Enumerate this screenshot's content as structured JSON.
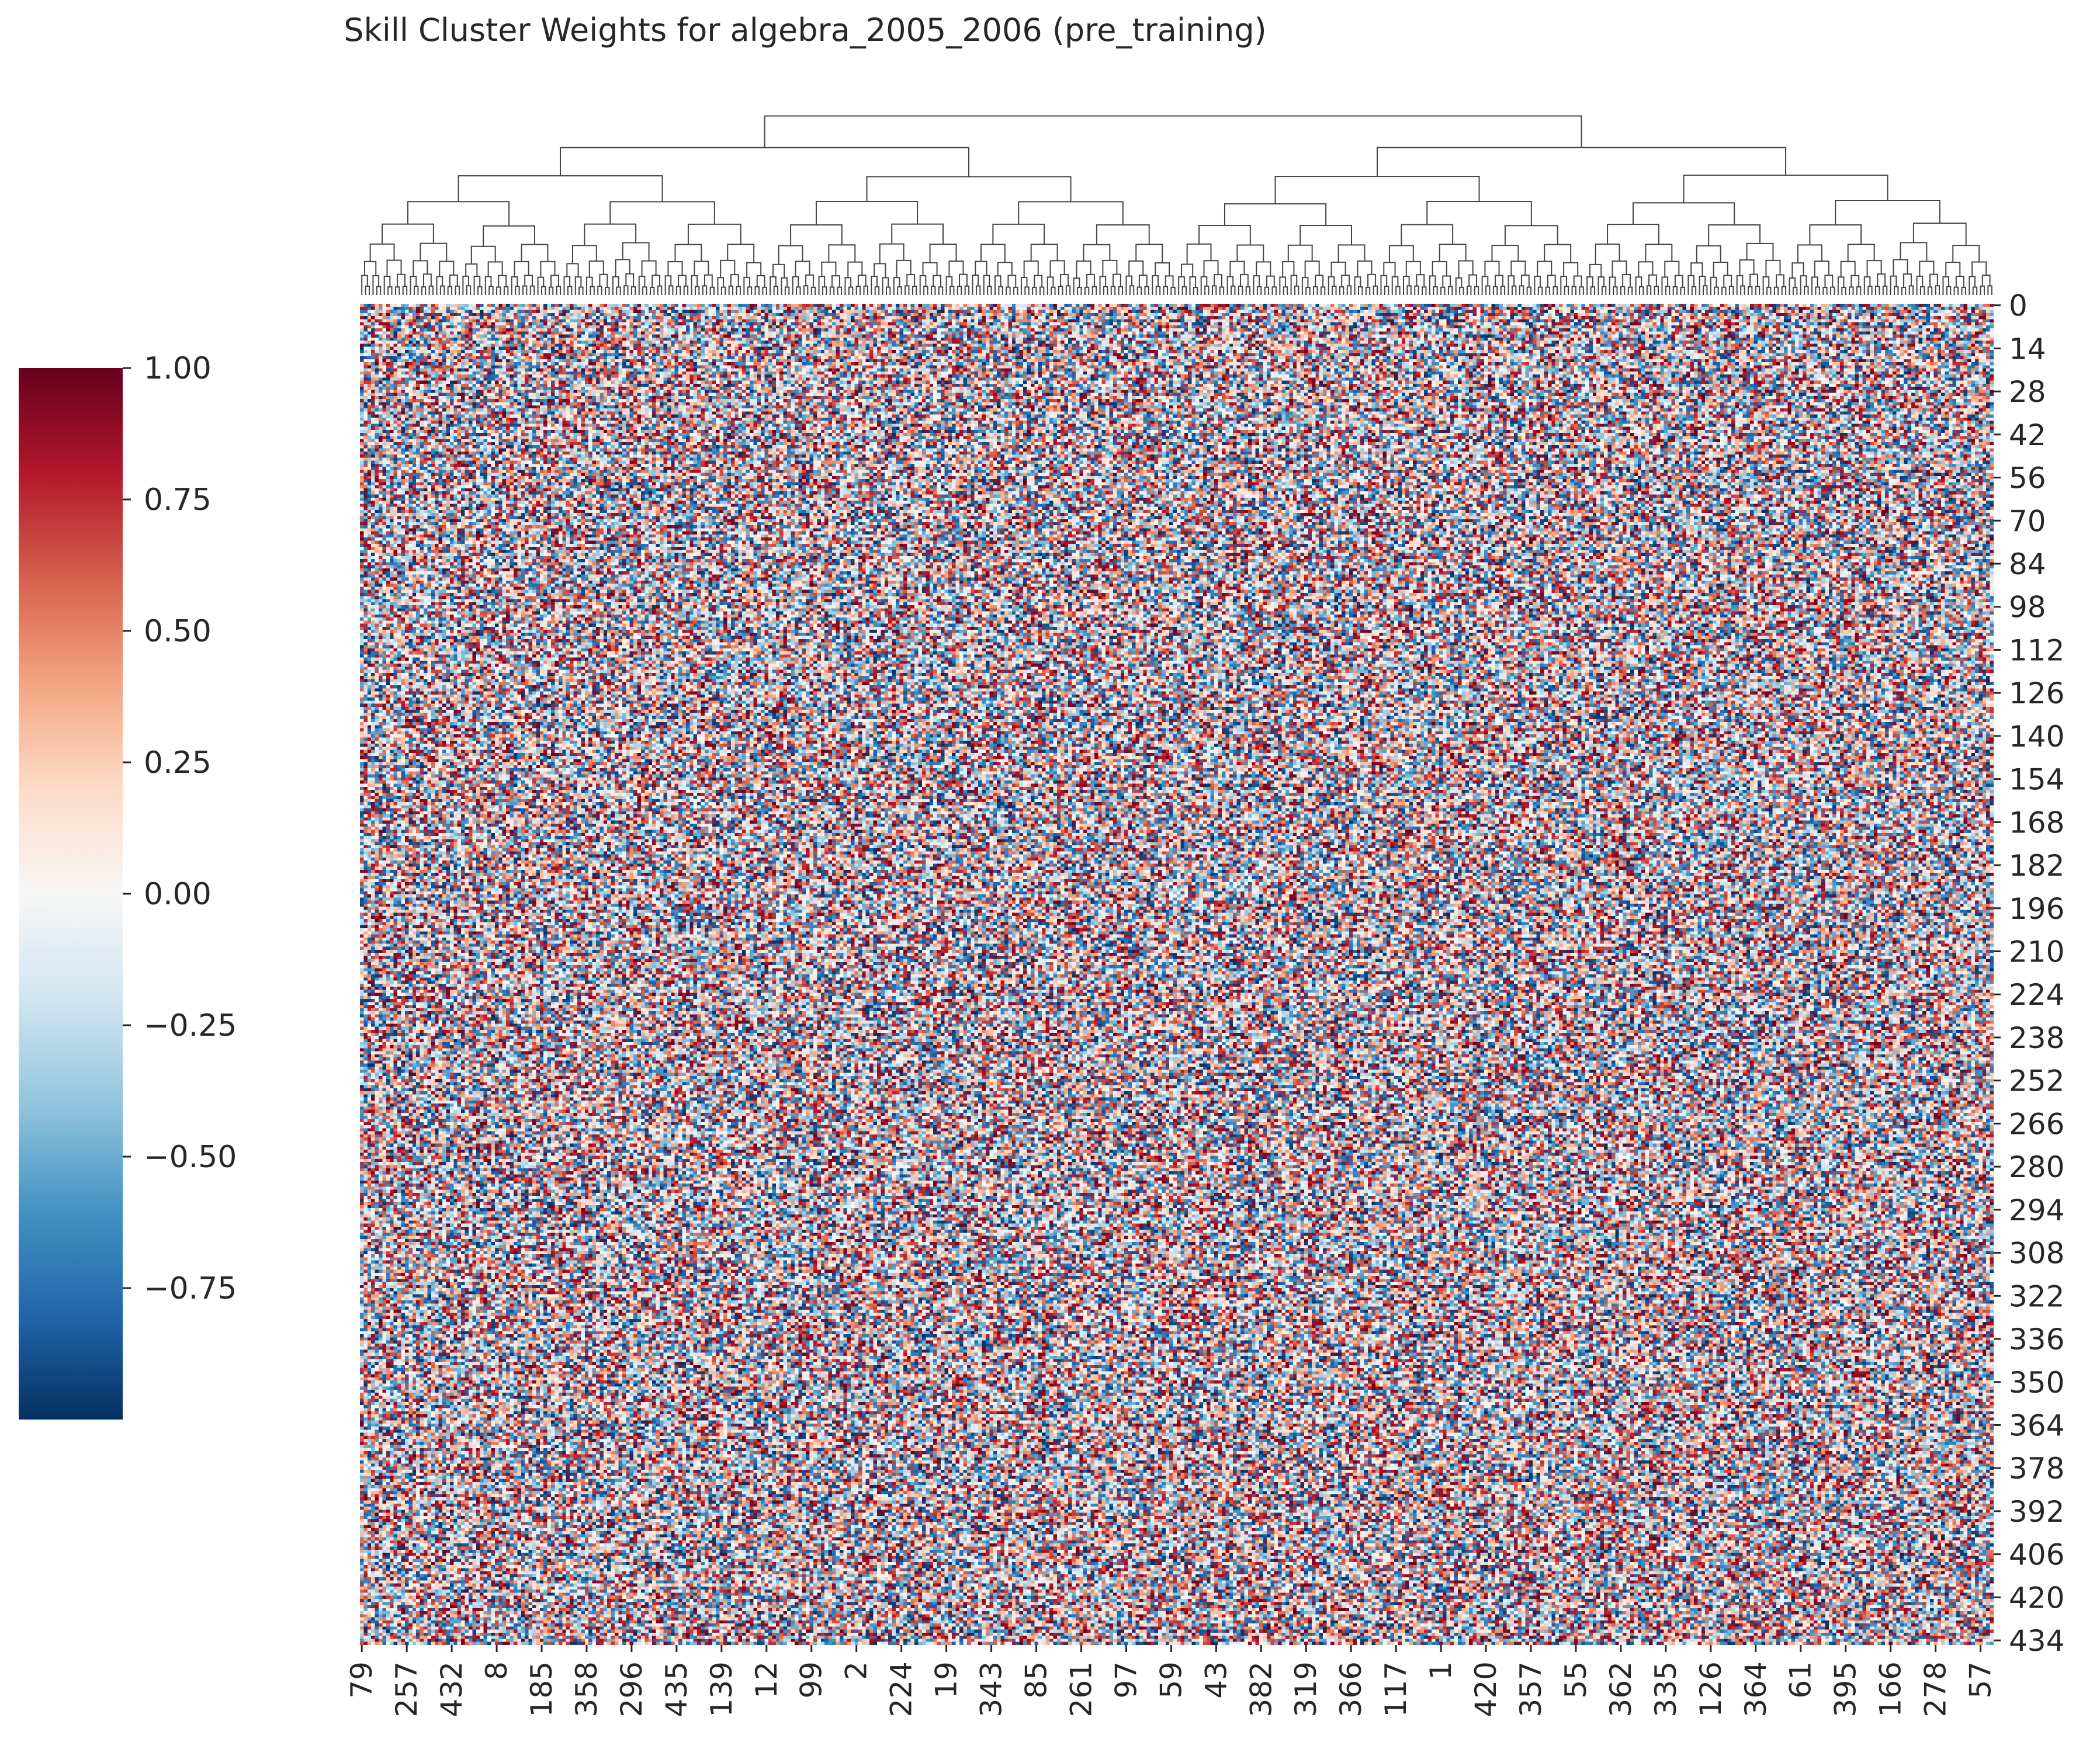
{
  "chart_data": {
    "type": "heatmap",
    "title": "Skill Cluster Weights for algebra_2005_2006 (pre_training)",
    "xlabel": "",
    "ylabel": "",
    "rows": 436,
    "cols": 436,
    "value_range": [
      -1.0,
      1.0
    ],
    "colormap": "RdBu_r",
    "colormap_colors": [
      "#053061",
      "#2166ac",
      "#4393c3",
      "#92c5de",
      "#d1e5f0",
      "#f7f7f7",
      "#fddbc7",
      "#f4a582",
      "#d6604d",
      "#b2182b",
      "#67001f"
    ],
    "distribution": "uniform random weights in [-1, 1]",
    "dendrogram": "column hierarchical clustering (top)",
    "x_tick_labels": [
      "79",
      "257",
      "432",
      "8",
      "185",
      "358",
      "296",
      "435",
      "139",
      "12",
      "99",
      "2",
      "224",
      "19",
      "343",
      "85",
      "261",
      "97",
      "59",
      "43",
      "382",
      "319",
      "366",
      "117",
      "1",
      "420",
      "357",
      "55",
      "362",
      "335",
      "126",
      "364",
      "61",
      "395",
      "166",
      "278",
      "57"
    ],
    "y_tick_labels": [
      "0",
      "14",
      "28",
      "42",
      "56",
      "70",
      "84",
      "98",
      "112",
      "126",
      "140",
      "154",
      "168",
      "182",
      "196",
      "210",
      "224",
      "238",
      "252",
      "266",
      "280",
      "294",
      "308",
      "322",
      "336",
      "350",
      "364",
      "378",
      "392",
      "406",
      "420",
      "434"
    ],
    "colorbar": {
      "ticks": [
        "1.00",
        "0.75",
        "0.50",
        "0.25",
        "0.00",
        "−0.25",
        "−0.50",
        "−0.75"
      ],
      "tick_values": [
        1.0,
        0.75,
        0.5,
        0.25,
        0.0,
        -0.25,
        -0.5,
        -0.75
      ],
      "range": [
        -1.0,
        1.0
      ]
    }
  }
}
